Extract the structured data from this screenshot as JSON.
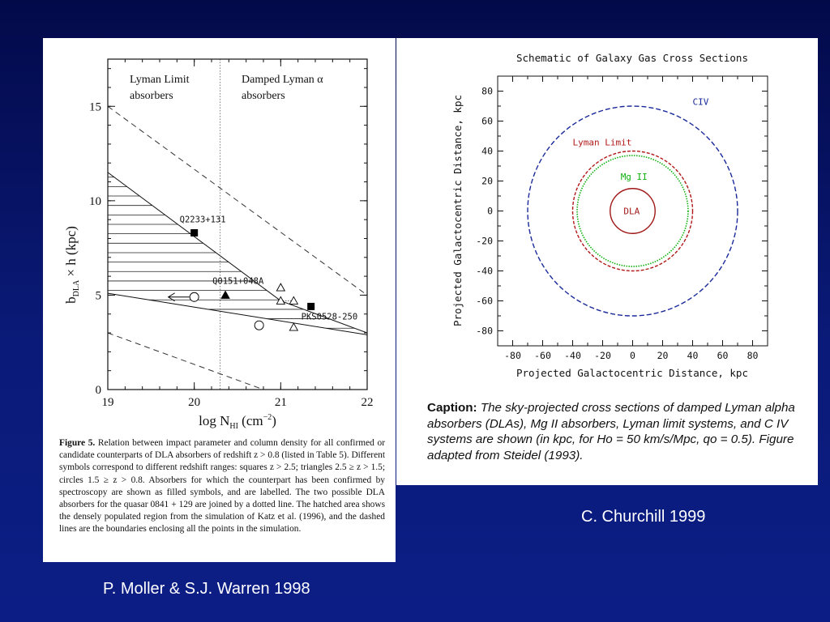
{
  "left_figure": {
    "region_left": "Lyman Limit\nabsorbers",
    "region_right": "Damped Lyman α\nabsorbers",
    "caption_label": "Figure 5.",
    "caption_text": "Relation between impact parameter and column density for all confirmed or candidate counterparts of DLA absorbers of redshift z > 0.8 (listed in Table 5). Different symbols correspond to different redshift ranges: squares z > 2.5; triangles 2.5 ≥ z > 1.5; circles 1.5 ≥ z > 0.8. Absorbers for which the counterpart has been confirmed by spectroscopy are shown as filled symbols, and are labelled. The two possible DLA absorbers for the quasar 0841 + 129 are joined by a dotted line. The hatched area shows the densely populated region from the simulation of Katz et al. (1996), and the dashed lines are the boundaries enclosing all the points in the simulation."
  },
  "right_figure": {
    "caption_label": "Caption:",
    "caption_text": "The sky-projected cross sections of damped Lyman alpha absorbers (DLAs), Mg II absorbers, Lyman limit systems, and C IV systems are shown (in kpc, for Ho = 50 km/s/Mpc, qo = 0.5). Figure adapted from Steidel (1993)."
  },
  "credits": {
    "left": "P. Moller & S.J. Warren 1998",
    "right": "C.  Churchill  1999"
  },
  "colors": {
    "background": "#0a1a78",
    "civ": "#1a2a9a",
    "lyman_limit": "#b01818",
    "mgii": "#10b010",
    "dla": "#a01818"
  },
  "chart_data": [
    {
      "type": "scatter",
      "xlabel": "log N_HI (cm^-2)",
      "ylabel": "b_DLA × h (kpc)",
      "xlim": [
        19,
        22
      ],
      "ylim": [
        0,
        17.5
      ],
      "xticks": [
        19,
        20,
        21,
        22
      ],
      "yticks": [
        0,
        5,
        10,
        15
      ],
      "divider_x": 20.3,
      "points": [
        {
          "label": "Q2233+131",
          "x": 20.0,
          "y": 8.3,
          "marker": "square",
          "filled": true
        },
        {
          "label": "Q0151+048A",
          "x": 20.36,
          "y": 5.0,
          "marker": "triangle",
          "filled": true
        },
        {
          "label": "PKS0528-250",
          "x": 21.35,
          "y": 4.4,
          "marker": "square",
          "filled": true
        },
        {
          "label": "",
          "x": 20.0,
          "y": 4.9,
          "marker": "circle",
          "filled": false,
          "upper_limit_arrow": true
        },
        {
          "label": "",
          "x": 20.75,
          "y": 3.4,
          "marker": "circle",
          "filled": false
        },
        {
          "label": "",
          "x": 21.0,
          "y": 5.4,
          "marker": "triangle",
          "filled": false
        },
        {
          "label": "",
          "x": 21.0,
          "y": 4.7,
          "marker": "triangle",
          "filled": false
        },
        {
          "label": "",
          "x": 21.15,
          "y": 3.3,
          "marker": "triangle",
          "filled": false
        },
        {
          "label": "",
          "x": 21.15,
          "y": 4.7,
          "marker": "triangle",
          "filled": false
        }
      ],
      "dotted_pair": [
        [
          21.0,
          4.7
        ],
        [
          21.15,
          4.7
        ]
      ],
      "hatched_region": {
        "upper": [
          [
            19,
            11.5
          ],
          [
            21.0,
            4.7
          ],
          [
            22,
            3.0
          ]
        ],
        "lower": [
          [
            19,
            5.1
          ],
          [
            22,
            2.9
          ]
        ]
      },
      "dashed_boundaries": [
        [
          [
            19,
            15.0
          ],
          [
            22,
            5.0
          ]
        ],
        [
          [
            19,
            3.0
          ],
          [
            22,
            -2.0
          ]
        ]
      ]
    },
    {
      "type": "line",
      "title": "Schematic of Galaxy Gas Cross Sections",
      "xlabel": "Projected Galactocentric Distance, kpc",
      "ylabel": "Projected Galactocentric Distance, kpc",
      "xlim": [
        -90,
        90
      ],
      "ylim": [
        -90,
        90
      ],
      "xticks": [
        -80,
        -60,
        -40,
        -20,
        0,
        20,
        40,
        60,
        80
      ],
      "yticks": [
        -80,
        -60,
        -40,
        -20,
        0,
        20,
        40,
        60,
        80
      ],
      "series": [
        {
          "name": "CIV",
          "radius": 70,
          "style": "dashed",
          "color": "#1a2a9a"
        },
        {
          "name": "Lyman Limit",
          "radius": 40,
          "style": "dashed",
          "color": "#b01818"
        },
        {
          "name": "Mg II",
          "radius": 37,
          "style": "dotted",
          "color": "#10b010"
        },
        {
          "name": "DLA",
          "radius": 15,
          "style": "solid",
          "color": "#a01818"
        }
      ]
    }
  ]
}
